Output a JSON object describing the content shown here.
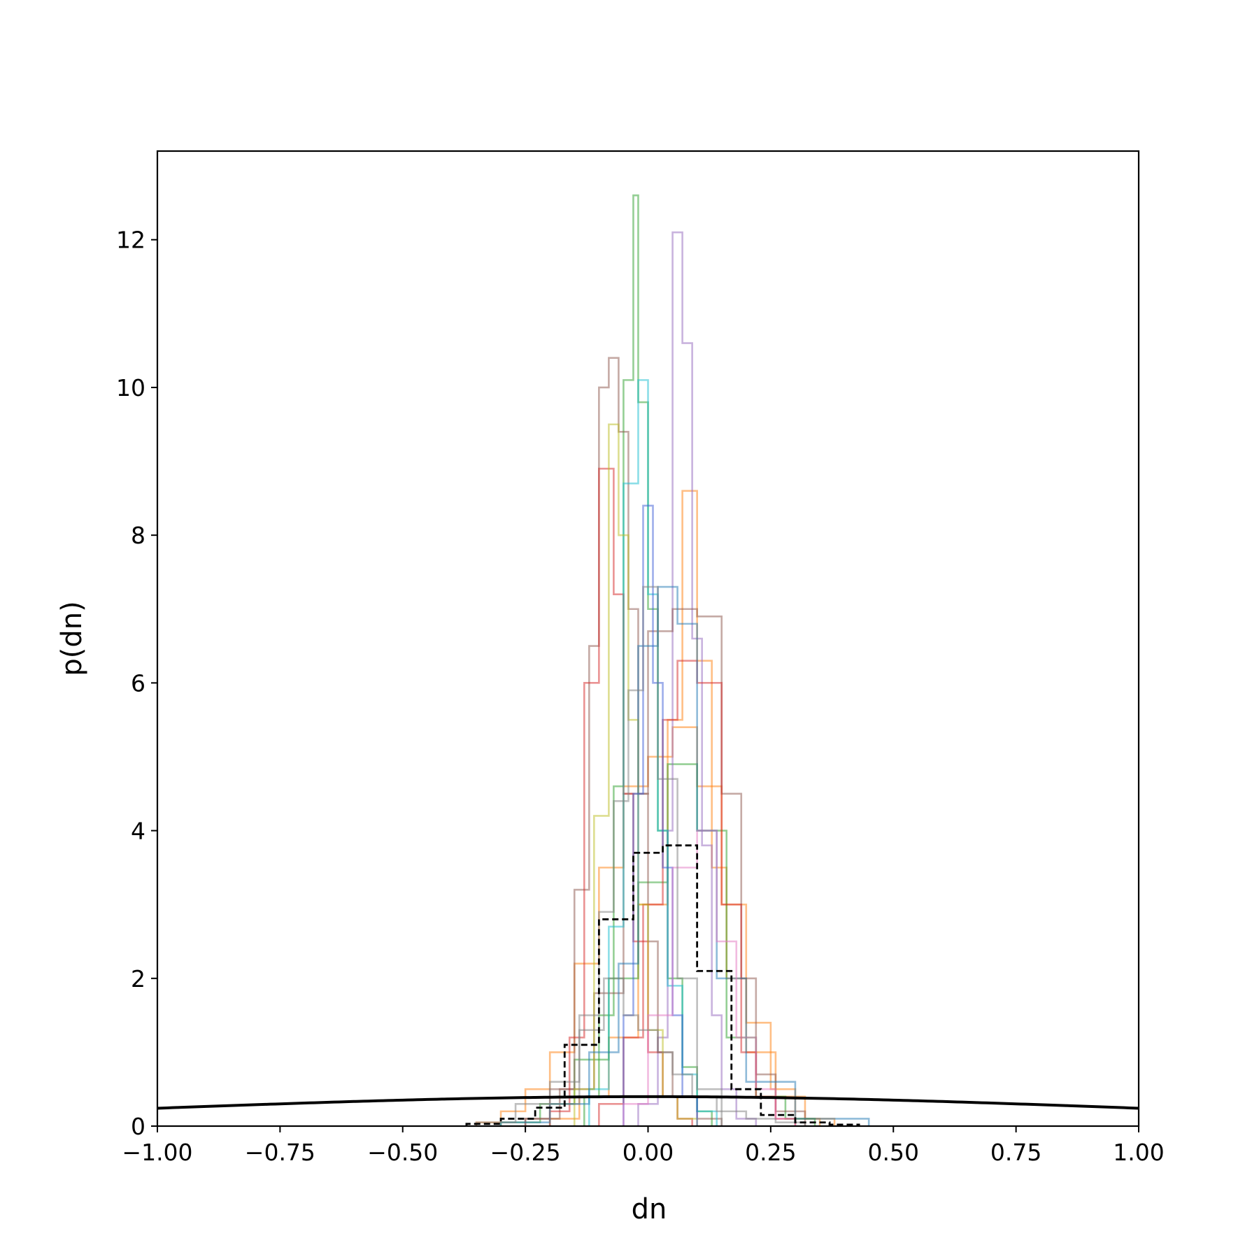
{
  "chart_data": {
    "type": "histogram",
    "xlabel": "dn",
    "ylabel": "p(dn)",
    "xlim": [
      -1.0,
      1.0
    ],
    "ylim": [
      0,
      13.2
    ],
    "x_ticks": [
      -1.0,
      -0.75,
      -0.5,
      -0.25,
      0.0,
      0.25,
      0.5,
      0.75,
      1.0
    ],
    "x_tick_labels": [
      "−1.00",
      "−0.75",
      "−0.50",
      "−0.25",
      "0.00",
      "0.25",
      "0.50",
      "0.75",
      "1.00"
    ],
    "y_ticks": [
      0,
      2,
      4,
      6,
      8,
      10,
      12
    ],
    "y_tick_labels": [
      "0",
      "2",
      "4",
      "6",
      "8",
      "10",
      "12"
    ],
    "grid": false,
    "legend": "none",
    "series": [
      {
        "style": "step-alpha",
        "color": "#ff7f0e",
        "edges": [
          -0.35,
          -0.3,
          -0.25,
          -0.2,
          -0.15,
          -0.1,
          -0.05,
          0.0,
          0.05,
          0.1,
          0.15,
          0.2,
          0.25,
          0.3,
          0.35
        ],
        "values": [
          0.05,
          0.2,
          0.5,
          1.0,
          2.2,
          3.5,
          4.6,
          5.0,
          5.4,
          4.6,
          3.0,
          1.4,
          0.5,
          0.1
        ]
      },
      {
        "style": "step-alpha",
        "color": "#ff7f0e",
        "edges": [
          -0.2,
          -0.14,
          -0.08,
          -0.02,
          0.04,
          0.07,
          0.1,
          0.13,
          0.16,
          0.2,
          0.26,
          0.32,
          0.38
        ],
        "values": [
          0.1,
          0.4,
          1.2,
          3.0,
          5.5,
          8.6,
          6.3,
          3.5,
          2.0,
          1.0,
          0.4,
          0.1
        ]
      },
      {
        "style": "step-alpha",
        "color": "#2ca02c",
        "edges": [
          -0.13,
          -0.1,
          -0.07,
          -0.05,
          -0.03,
          -0.02,
          0.0,
          0.02,
          0.04,
          0.07,
          0.1,
          0.13
        ],
        "values": [
          0.4,
          1.5,
          4.6,
          10.1,
          12.6,
          9.8,
          7.0,
          4.0,
          2.0,
          0.8,
          0.2
        ]
      },
      {
        "style": "step-alpha",
        "color": "#2ca02c",
        "edges": [
          -0.3,
          -0.22,
          -0.15,
          -0.08,
          -0.02,
          0.04,
          0.1,
          0.16,
          0.22,
          0.28,
          0.34
        ],
        "values": [
          0.05,
          0.3,
          0.9,
          2.0,
          3.3,
          4.9,
          4.0,
          1.2,
          0.4,
          0.1
        ]
      },
      {
        "style": "step-alpha",
        "color": "#9467bd",
        "edges": [
          -0.02,
          0.02,
          0.04,
          0.05,
          0.07,
          0.09,
          0.11,
          0.13,
          0.15,
          0.18,
          0.22
        ],
        "values": [
          0.3,
          1.2,
          4.0,
          12.1,
          10.6,
          6.6,
          3.8,
          1.5,
          0.5,
          0.1
        ]
      },
      {
        "style": "step-alpha",
        "color": "#8c564b",
        "edges": [
          -0.25,
          -0.2,
          -0.15,
          -0.12,
          -0.1,
          -0.08,
          -0.06,
          -0.04,
          -0.02,
          0.0,
          0.02,
          0.05,
          0.1,
          0.15
        ],
        "values": [
          0.1,
          0.5,
          3.2,
          6.5,
          10.0,
          10.4,
          9.4,
          7.0,
          4.5,
          2.5,
          1.0,
          0.4,
          0.1
        ]
      },
      {
        "style": "step-alpha",
        "color": "#8c564b",
        "edges": [
          -0.25,
          -0.18,
          -0.11,
          -0.05,
          0.0,
          0.05,
          0.1,
          0.15,
          0.19,
          0.22,
          0.26,
          0.32
        ],
        "values": [
          0.1,
          0.5,
          1.8,
          4.5,
          6.7,
          7.0,
          6.9,
          4.5,
          2.0,
          0.7,
          0.2
        ]
      },
      {
        "style": "step-alpha",
        "color": "#d62728",
        "edges": [
          -0.2,
          -0.16,
          -0.13,
          -0.1,
          -0.07,
          -0.05,
          -0.03,
          0.0,
          0.03,
          0.06,
          0.09
        ],
        "values": [
          0.2,
          1.2,
          6.0,
          8.9,
          7.2,
          4.5,
          2.5,
          1.0,
          0.4,
          0.1
        ]
      },
      {
        "style": "step-alpha",
        "color": "#d62728",
        "edges": [
          -0.1,
          -0.05,
          -0.01,
          0.03,
          0.06,
          0.1,
          0.15,
          0.19,
          0.22,
          0.26,
          0.3
        ],
        "values": [
          0.3,
          1.2,
          3.0,
          5.5,
          6.3,
          6.0,
          3.0,
          1.0,
          0.4,
          0.1
        ]
      },
      {
        "style": "step-alpha",
        "color": "#17becf",
        "edges": [
          -0.12,
          -0.08,
          -0.05,
          -0.02,
          0.0,
          0.02,
          0.04,
          0.07,
          0.1,
          0.14
        ],
        "values": [
          0.5,
          2.7,
          8.7,
          10.1,
          7.2,
          4.0,
          1.9,
          0.7,
          0.2
        ]
      },
      {
        "style": "step-alpha",
        "color": "#bcbd22",
        "edges": [
          -0.15,
          -0.11,
          -0.08,
          -0.06,
          -0.04,
          -0.02,
          0.0,
          0.03,
          0.06,
          0.1
        ],
        "values": [
          0.5,
          4.2,
          9.5,
          8.0,
          5.5,
          3.0,
          1.3,
          0.4,
          0.1
        ]
      },
      {
        "style": "step-alpha",
        "color": "#1f77b4",
        "edges": [
          -0.3,
          -0.2,
          -0.12,
          -0.06,
          -0.02,
          0.02,
          0.06,
          0.1,
          0.14,
          0.2,
          0.3,
          0.45
        ],
        "values": [
          0.05,
          0.3,
          1.0,
          2.2,
          6.5,
          7.3,
          6.8,
          4.0,
          2.0,
          0.6,
          0.1
        ]
      },
      {
        "style": "step-alpha",
        "color": "#3b5bd6",
        "edges": [
          -0.05,
          -0.03,
          -0.01,
          0.01,
          0.03,
          0.05,
          0.07,
          0.1
        ],
        "values": [
          1.5,
          4.5,
          8.4,
          6.0,
          3.5,
          1.5,
          0.4
        ]
      },
      {
        "style": "step-alpha",
        "color": "#e377c2",
        "edges": [
          -0.05,
          0.0,
          0.05,
          0.1,
          0.14,
          0.18,
          0.22,
          0.26,
          0.3
        ],
        "values": [
          0.3,
          1.5,
          3.5,
          4.0,
          2.5,
          1.2,
          0.5,
          0.1
        ]
      },
      {
        "style": "step-alpha",
        "color": "#7f7f7f",
        "edges": [
          -0.2,
          -0.14,
          -0.1,
          -0.07,
          -0.04,
          -0.01,
          0.02,
          0.06,
          0.1,
          0.15
        ],
        "values": [
          0.3,
          1.5,
          2.9,
          4.4,
          5.9,
          7.3,
          4.7,
          2.0,
          0.5
        ]
      },
      {
        "style": "step-alpha",
        "color": "#7f7f7f",
        "edges": [
          -0.35,
          -0.27,
          -0.2,
          -0.14,
          -0.09,
          -0.05,
          -0.02,
          0.02,
          0.05,
          0.09,
          0.14,
          0.2,
          0.26,
          0.32
        ],
        "values": [
          0.05,
          0.3,
          0.6,
          1.3,
          2.0,
          1.5,
          1.3,
          1.0,
          0.7,
          0.4,
          0.2,
          0.1,
          0.05
        ]
      },
      {
        "style": "step-dashed",
        "color": "#000000",
        "edges": [
          -0.37,
          -0.3,
          -0.23,
          -0.17,
          -0.1,
          -0.03,
          0.03,
          0.1,
          0.17,
          0.23,
          0.3,
          0.37,
          0.43
        ],
        "values": [
          0.03,
          0.1,
          0.25,
          1.1,
          2.8,
          3.7,
          3.8,
          2.1,
          0.5,
          0.15,
          0.05,
          0.02
        ]
      },
      {
        "style": "curve",
        "color": "#000000",
        "kind": "normal-pdf",
        "mean": 0.0,
        "std": 1.0
      }
    ]
  }
}
